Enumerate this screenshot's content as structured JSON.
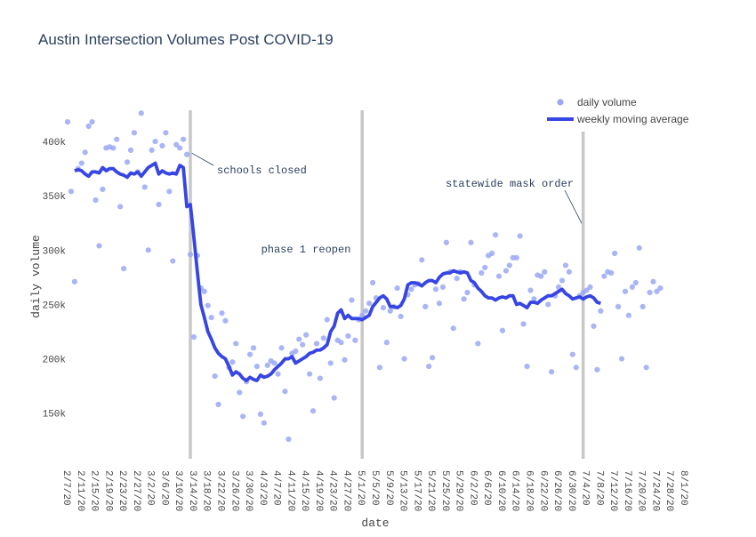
{
  "chart_data": {
    "type": "scatter+line",
    "title": "Austin Intersection Volumes Post COVID-19",
    "xlabel": "date",
    "ylabel": "daily volume",
    "ylim": [
      108000,
      432000
    ],
    "yticks": [
      150000,
      200000,
      250000,
      300000,
      350000,
      400000
    ],
    "ytick_labels": [
      "150k",
      "200k",
      "250k",
      "300k",
      "350k",
      "400k"
    ],
    "x_start": "2020-02-07",
    "x_end": "2020-08-01",
    "xtick_labels": [
      "2/7/20",
      "2/11/20",
      "2/15/20",
      "2/19/20",
      "2/23/20",
      "2/27/20",
      "3/2/20",
      "3/6/20",
      "3/10/20",
      "3/14/20",
      "3/18/20",
      "3/22/20",
      "3/26/20",
      "3/30/20",
      "4/3/20",
      "4/7/20",
      "4/11/20",
      "4/15/20",
      "4/19/20",
      "4/23/20",
      "4/27/20",
      "5/1/20",
      "5/5/20",
      "5/9/20",
      "5/13/20",
      "5/17/20",
      "5/21/20",
      "5/25/20",
      "5/29/20",
      "6/2/20",
      "6/6/20",
      "6/10/20",
      "6/14/20",
      "6/18/20",
      "6/22/20",
      "6/26/20",
      "6/30/20",
      "7/4/20",
      "7/8/20",
      "7/12/20",
      "7/16/20",
      "7/20/20",
      "7/24/20",
      "7/28/20",
      "8/1/20"
    ],
    "grid": false,
    "legend_position": "top-right",
    "series": [
      {
        "name": "daily volume",
        "kind": "scatter",
        "color": "#9aa8f4",
        "values": [
          418000,
          354000,
          271000,
          375000,
          380000,
          390000,
          414000,
          418000,
          346000,
          304000,
          356000,
          394000,
          395000,
          394000,
          402000,
          340000,
          283000,
          381000,
          392000,
          408000,
          372000,
          426000,
          358000,
          300000,
          392000,
          400000,
          342000,
          396000,
          408000,
          354000,
          290000,
          397000,
          394000,
          402000,
          388000,
          296000,
          220000,
          295000,
          265000,
          262000,
          249000,
          238000,
          184000,
          158000,
          242000,
          235000,
          192000,
          197000,
          214000,
          169000,
          147000,
          179000,
          204000,
          210000,
          193000,
          149000,
          141000,
          194000,
          198000,
          196000,
          186000,
          210000,
          170000,
          126000,
          205000,
          207000,
          218000,
          213000,
          222000,
          186000,
          152000,
          214000,
          182000,
          219000,
          236000,
          196000,
          164000,
          217000,
          215000,
          199000,
          221000,
          254000,
          217000,
          236000,
          240000,
          244000,
          251000,
          270000,
          256000,
          192000,
          247000,
          215000,
          244000,
          248000,
          265000,
          239000,
          200000,
          259000,
          264000,
          268000,
          269000,
          291000,
          248000,
          193000,
          201000,
          264000,
          251000,
          266000,
          307000,
          280000,
          228000,
          274000,
          280000,
          255000,
          261000,
          307000,
          268000,
          214000,
          279000,
          284000,
          295000,
          297000,
          314000,
          276000,
          226000,
          281000,
          286000,
          293000,
          293000,
          313000,
          232000,
          193000,
          263000,
          255000,
          277000,
          276000,
          280000,
          250000,
          188000,
          258000,
          266000,
          272000,
          286000,
          280000,
          204000,
          192000,
          258000,
          261000,
          263000,
          266000,
          230000,
          190000,
          244000,
          276000,
          280000,
          279000,
          297000,
          248000,
          200000,
          262000,
          240000,
          266000,
          270000,
          302000,
          248000,
          192000,
          261000,
          271000,
          262000,
          265000
        ]
      },
      {
        "name": "weekly moving average",
        "kind": "line",
        "color": "#3645e4",
        "values": [
          373000,
          374000,
          373000,
          370000,
          368000,
          372000,
          372000,
          371000,
          376000,
          373000,
          375000,
          375000,
          372000,
          370000,
          369000,
          367000,
          371000,
          370000,
          372000,
          368000,
          372000,
          376000,
          378000,
          380000,
          370000,
          373000,
          371000,
          370000,
          371000,
          370000,
          378000,
          376000,
          340000,
          342000,
          312000,
          280000,
          250000,
          238000,
          225000,
          218000,
          210000,
          205000,
          202000,
          200000,
          193000,
          185000,
          188000,
          186000,
          182000,
          180000,
          183000,
          181000,
          180000,
          185000,
          183000,
          184000,
          186000,
          190000,
          193000,
          196000,
          200000,
          200000,
          202000,
          196000,
          198000,
          200000,
          202000,
          205000,
          206000,
          208000,
          208000,
          210000,
          213000,
          225000,
          230000,
          242000,
          245000,
          237000,
          240000,
          237000,
          237000,
          237000,
          236000,
          238000,
          240000,
          248000,
          252000,
          256000,
          258000,
          255000,
          248000,
          248000,
          247000,
          249000,
          255000,
          268000,
          270000,
          270000,
          269000,
          267000,
          270000,
          272000,
          272000,
          270000,
          275000,
          278000,
          279000,
          279000,
          281000,
          280000,
          279000,
          280000,
          279000,
          272000,
          270000,
          265000,
          262000,
          258000,
          256000,
          256000,
          254000,
          256000,
          257000,
          256000,
          258000,
          258000,
          250000,
          251000,
          249000,
          247000,
          252000,
          252000,
          251000,
          254000,
          256000,
          258000,
          258000,
          260000,
          262000,
          264000,
          260000,
          258000,
          255000,
          256000,
          257000,
          255000,
          257000,
          258000,
          256000,
          252000,
          251000
        ]
      }
    ],
    "vertical_lines": [
      {
        "date": "2020-03-13"
      },
      {
        "date": "2020-05-01"
      },
      {
        "date": "2020-07-03"
      }
    ],
    "annotations": [
      {
        "text": "schools closed",
        "date": "2020-03-13",
        "y": 390000
      },
      {
        "text": "phase 1 reopen",
        "date": "2020-05-01",
        "y": 286000
      },
      {
        "text": "statewide mask order",
        "date": "2020-07-03",
        "y": 322000
      }
    ]
  }
}
